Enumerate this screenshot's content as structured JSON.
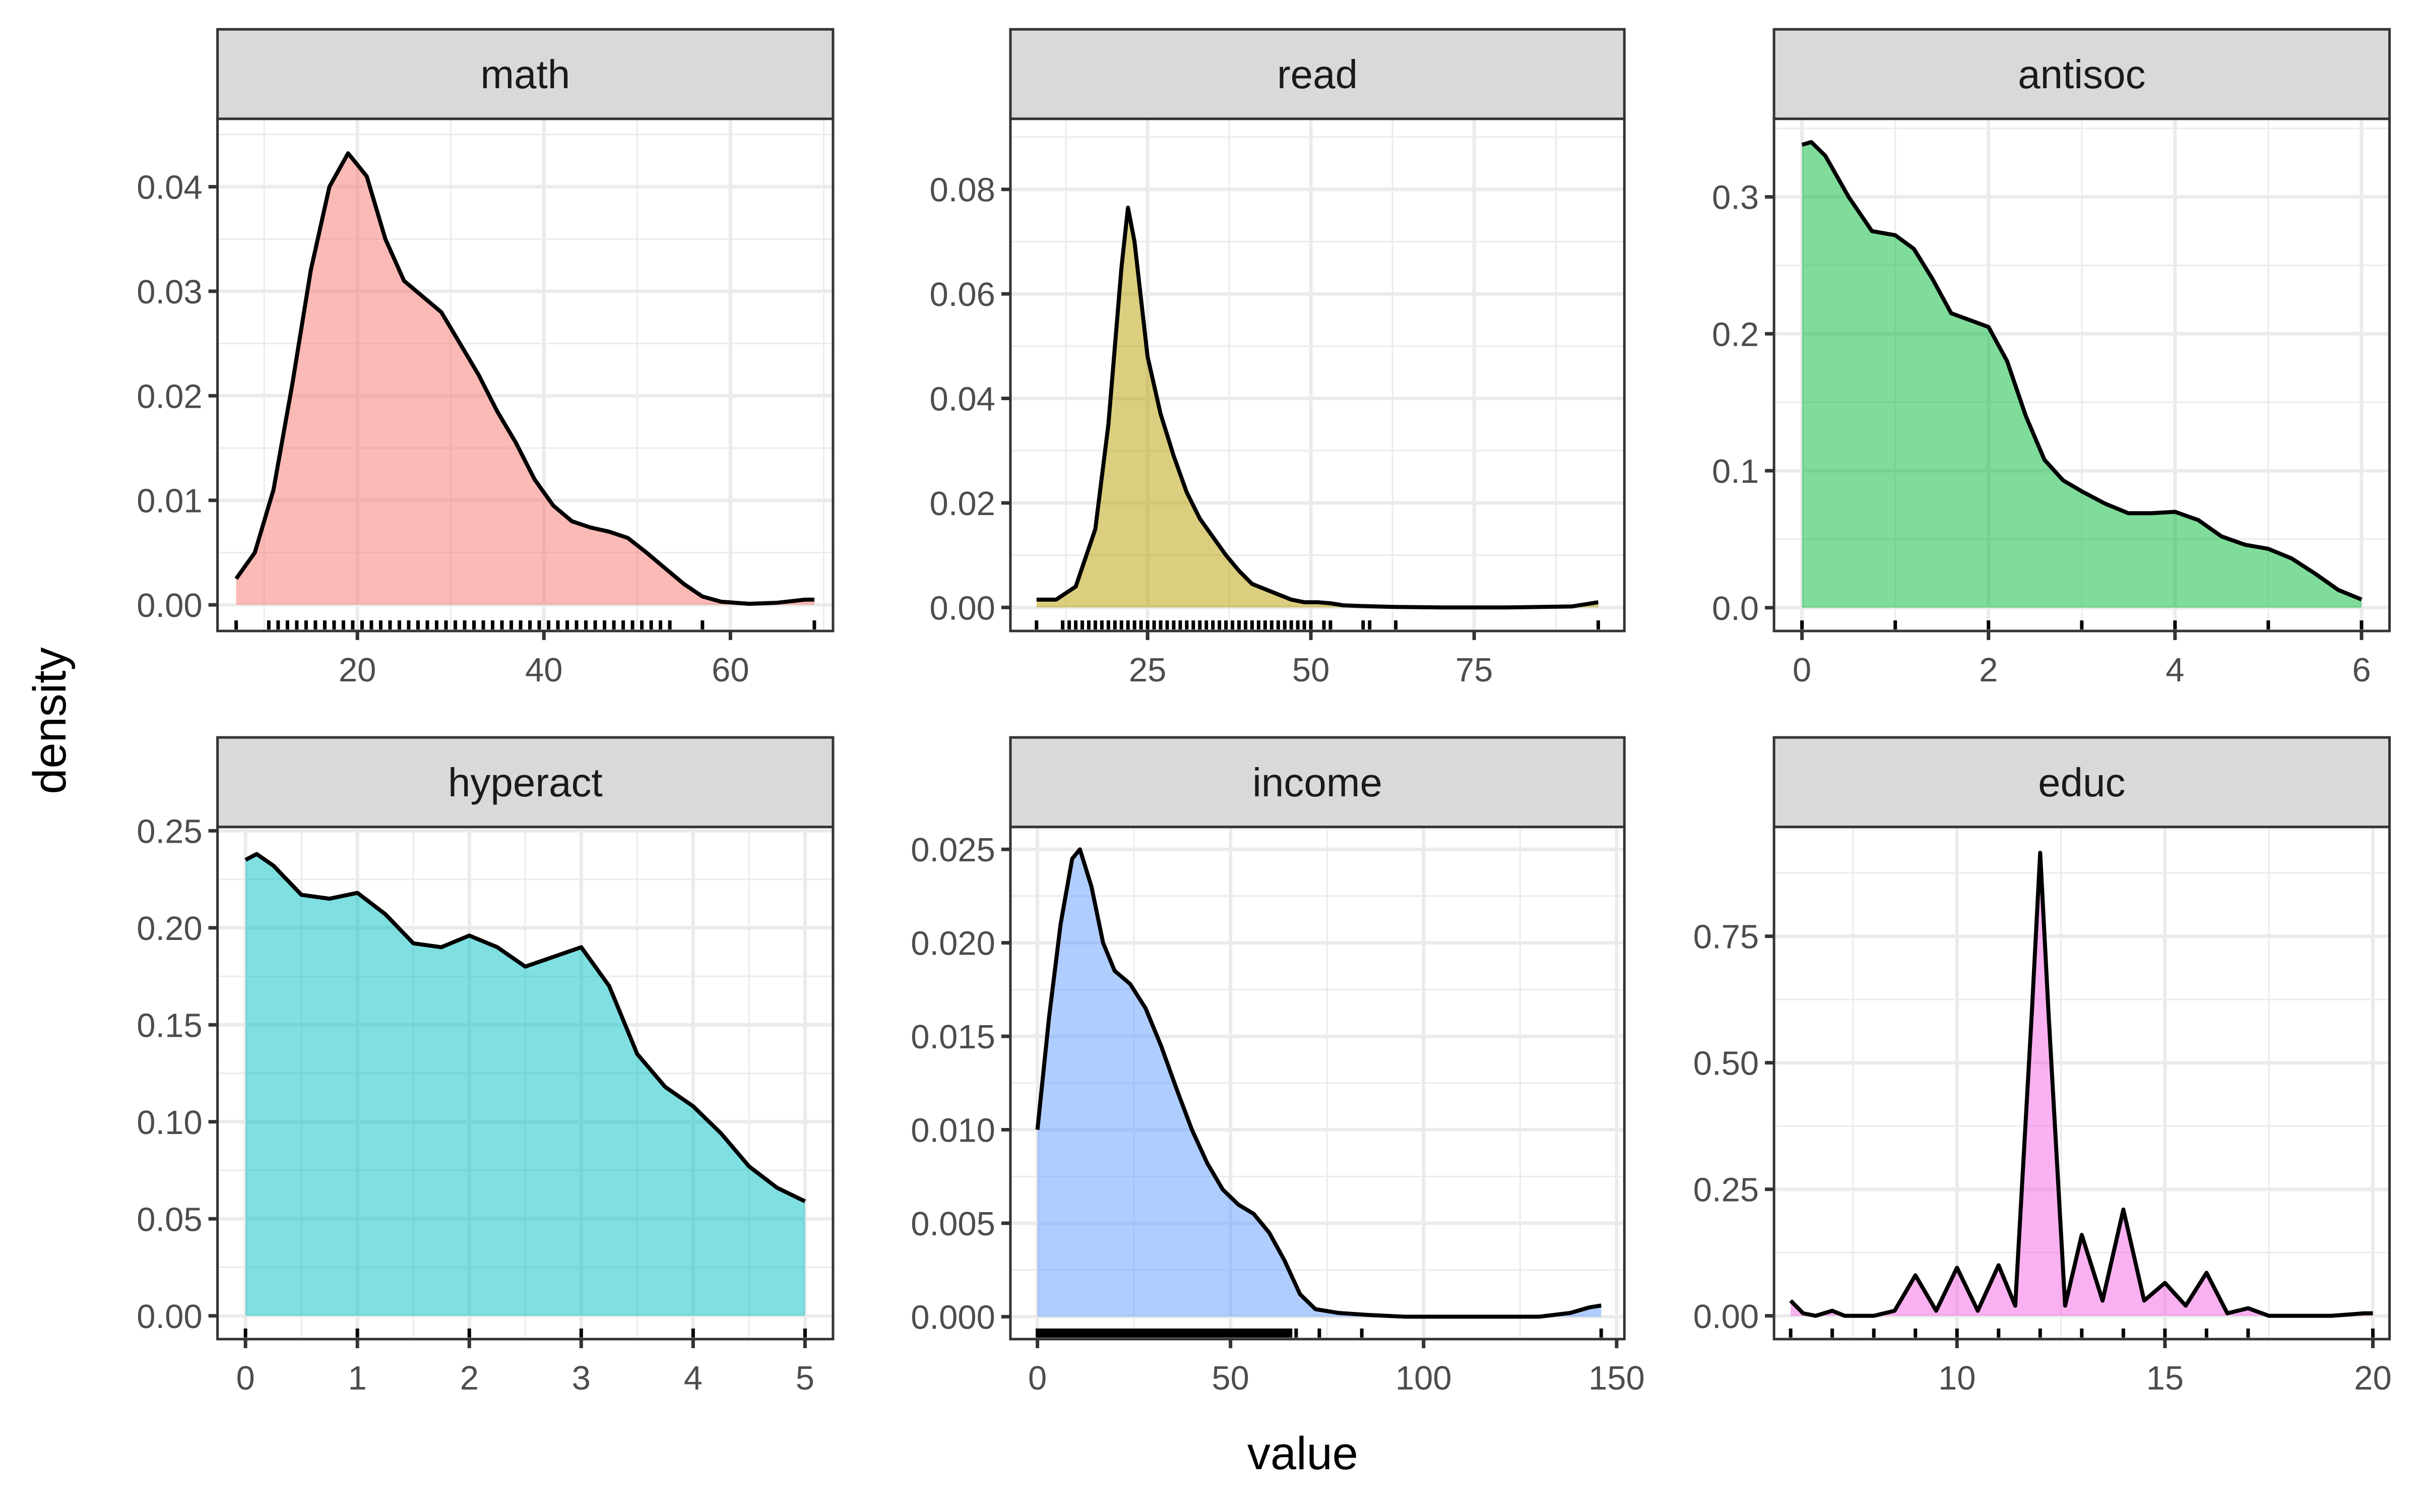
{
  "chart_data": {
    "type": "area",
    "xlabel": "value",
    "ylabel": "density",
    "grid": true,
    "layout": "facet_wrap 2 rows x 3 cols, free scales",
    "panels": [
      {
        "name": "math",
        "color": "#F8766D",
        "xlim": [
          5,
          71
        ],
        "ylim": [
          -0.0025,
          0.0465
        ],
        "xticks": [
          20,
          40,
          60
        ],
        "yticks": [
          0.0,
          0.01,
          0.02,
          0.03,
          0.04
        ],
        "ytick_labels": [
          "0.00",
          "0.01",
          "0.02",
          "0.03",
          "0.04"
        ],
        "xy": [
          [
            7,
            0.0025
          ],
          [
            9,
            0.005
          ],
          [
            11,
            0.011
          ],
          [
            13,
            0.021
          ],
          [
            15,
            0.032
          ],
          [
            17,
            0.04
          ],
          [
            19,
            0.0432
          ],
          [
            21,
            0.041
          ],
          [
            23,
            0.035
          ],
          [
            25,
            0.031
          ],
          [
            27,
            0.0295
          ],
          [
            29,
            0.028
          ],
          [
            31,
            0.025
          ],
          [
            33,
            0.022
          ],
          [
            35,
            0.0185
          ],
          [
            37,
            0.0155
          ],
          [
            39,
            0.012
          ],
          [
            41,
            0.0095
          ],
          [
            43,
            0.008
          ],
          [
            45,
            0.0074
          ],
          [
            47,
            0.007
          ],
          [
            49,
            0.0064
          ],
          [
            51,
            0.005
          ],
          [
            53,
            0.0035
          ],
          [
            55,
            0.002
          ],
          [
            57,
            0.0008
          ],
          [
            59,
            0.0003
          ],
          [
            62,
            0.0001
          ],
          [
            65,
            0.0002
          ],
          [
            68,
            0.0005
          ],
          [
            69,
            0.0005
          ]
        ],
        "rug": [
          7,
          10.5,
          11.5,
          12.5,
          13.5,
          14.5,
          15.5,
          16.5,
          17.5,
          18.5,
          19.5,
          20.5,
          21.5,
          22.5,
          23.5,
          24.5,
          25.5,
          26.5,
          27.5,
          28.5,
          29.5,
          30.5,
          31.5,
          32.5,
          33.5,
          34.5,
          35.5,
          36.5,
          37.5,
          38.5,
          39.5,
          40.5,
          41.5,
          42.5,
          43.5,
          44.5,
          45.5,
          46.5,
          47.5,
          48.5,
          49.5,
          50.5,
          51.5,
          52.5,
          53.5,
          57,
          69
        ]
      },
      {
        "name": "read",
        "color": "#B79F00",
        "xlim": [
          4,
          98
        ],
        "ylim": [
          -0.0045,
          0.0935
        ],
        "xticks": [
          25,
          50,
          75
        ],
        "yticks": [
          0.0,
          0.02,
          0.04,
          0.06,
          0.08
        ],
        "ytick_labels": [
          "0.00",
          "0.02",
          "0.04",
          "0.06",
          "0.08"
        ],
        "xy": [
          [
            8,
            0.0015
          ],
          [
            11,
            0.0015
          ],
          [
            14,
            0.004
          ],
          [
            17,
            0.015
          ],
          [
            19,
            0.035
          ],
          [
            21,
            0.065
          ],
          [
            22,
            0.0765
          ],
          [
            23,
            0.07
          ],
          [
            25,
            0.048
          ],
          [
            27,
            0.037
          ],
          [
            29,
            0.029
          ],
          [
            31,
            0.022
          ],
          [
            33,
            0.017
          ],
          [
            35,
            0.0135
          ],
          [
            37,
            0.01
          ],
          [
            39,
            0.007
          ],
          [
            41,
            0.0045
          ],
          [
            43,
            0.0035
          ],
          [
            45,
            0.0025
          ],
          [
            47,
            0.0015
          ],
          [
            49,
            0.001
          ],
          [
            51,
            0.001
          ],
          [
            53,
            0.0008
          ],
          [
            55,
            0.0004
          ],
          [
            57,
            0.0003
          ],
          [
            60,
            0.0002
          ],
          [
            63,
            0.0001
          ],
          [
            70,
            0.0
          ],
          [
            80,
            0.0
          ],
          [
            90,
            0.0002
          ],
          [
            94,
            0.001
          ]
        ],
        "rug": [
          8,
          12,
          13,
          14,
          15,
          16,
          17,
          18,
          19,
          20,
          21,
          22,
          23,
          24,
          25,
          26,
          27,
          28,
          29,
          30,
          31,
          32,
          33,
          34,
          35,
          36,
          37,
          38,
          39,
          40,
          41,
          42,
          43,
          44,
          45,
          46,
          47,
          48,
          49,
          50,
          52,
          53,
          58,
          59,
          63,
          94
        ]
      },
      {
        "name": "antisoc",
        "color": "#00BA38",
        "xlim": [
          -0.3,
          6.3
        ],
        "ylim": [
          -0.017,
          0.357
        ],
        "xticks": [
          0,
          2,
          4,
          6
        ],
        "yticks": [
          0.0,
          0.1,
          0.2,
          0.3
        ],
        "ytick_labels": [
          "0.0",
          "0.1",
          "0.2",
          "0.3"
        ],
        "xy": [
          [
            0,
            0.338
          ],
          [
            0.1,
            0.34
          ],
          [
            0.25,
            0.33
          ],
          [
            0.5,
            0.3
          ],
          [
            0.75,
            0.275
          ],
          [
            1.0,
            0.272
          ],
          [
            1.2,
            0.262
          ],
          [
            1.4,
            0.24
          ],
          [
            1.6,
            0.215
          ],
          [
            1.8,
            0.21
          ],
          [
            2.0,
            0.205
          ],
          [
            2.2,
            0.18
          ],
          [
            2.4,
            0.14
          ],
          [
            2.6,
            0.108
          ],
          [
            2.8,
            0.093
          ],
          [
            3.0,
            0.085
          ],
          [
            3.25,
            0.076
          ],
          [
            3.5,
            0.069
          ],
          [
            3.75,
            0.069
          ],
          [
            4.0,
            0.07
          ],
          [
            4.25,
            0.064
          ],
          [
            4.5,
            0.052
          ],
          [
            4.75,
            0.046
          ],
          [
            5.0,
            0.043
          ],
          [
            5.25,
            0.036
          ],
          [
            5.5,
            0.025
          ],
          [
            5.75,
            0.013
          ],
          [
            6.0,
            0.006
          ]
        ],
        "rug": [
          0,
          1,
          2,
          3,
          4,
          5,
          6
        ]
      },
      {
        "name": "hyperact",
        "color": "#00BFC4",
        "xlim": [
          -0.25,
          5.25
        ],
        "ylim": [
          -0.012,
          0.252
        ],
        "xticks": [
          0,
          1,
          2,
          3,
          4,
          5
        ],
        "yticks": [
          0.0,
          0.05,
          0.1,
          0.15,
          0.2,
          0.25
        ],
        "ytick_labels": [
          "0.00",
          "0.05",
          "0.10",
          "0.15",
          "0.20",
          "0.25"
        ],
        "xy": [
          [
            0,
            0.235
          ],
          [
            0.1,
            0.238
          ],
          [
            0.25,
            0.232
          ],
          [
            0.5,
            0.217
          ],
          [
            0.75,
            0.215
          ],
          [
            1.0,
            0.218
          ],
          [
            1.25,
            0.207
          ],
          [
            1.5,
            0.192
          ],
          [
            1.75,
            0.19
          ],
          [
            2.0,
            0.196
          ],
          [
            2.25,
            0.19
          ],
          [
            2.5,
            0.18
          ],
          [
            2.75,
            0.185
          ],
          [
            3.0,
            0.19
          ],
          [
            3.25,
            0.17
          ],
          [
            3.5,
            0.135
          ],
          [
            3.75,
            0.118
          ],
          [
            4.0,
            0.108
          ],
          [
            4.25,
            0.094
          ],
          [
            4.5,
            0.077
          ],
          [
            4.75,
            0.066
          ],
          [
            5.0,
            0.059
          ]
        ],
        "rug": [
          0,
          1,
          2,
          3,
          4,
          5
        ]
      },
      {
        "name": "income",
        "color": "#619CFF",
        "xlim": [
          -7,
          152
        ],
        "ylim": [
          -0.0012,
          0.0262
        ],
        "xticks": [
          0,
          50,
          100,
          150
        ],
        "yticks": [
          0.0,
          0.005,
          0.01,
          0.015,
          0.02,
          0.025
        ],
        "ytick_labels": [
          "0.000",
          "0.005",
          "0.010",
          "0.015",
          "0.020",
          "0.025"
        ],
        "xy": [
          [
            0,
            0.01
          ],
          [
            3,
            0.016
          ],
          [
            6,
            0.021
          ],
          [
            9,
            0.0245
          ],
          [
            11,
            0.025
          ],
          [
            14,
            0.023
          ],
          [
            17,
            0.02
          ],
          [
            20,
            0.0185
          ],
          [
            24,
            0.0178
          ],
          [
            28,
            0.0165
          ],
          [
            32,
            0.0145
          ],
          [
            36,
            0.0122
          ],
          [
            40,
            0.01
          ],
          [
            44,
            0.0082
          ],
          [
            48,
            0.0068
          ],
          [
            52,
            0.006
          ],
          [
            56,
            0.0055
          ],
          [
            60,
            0.0045
          ],
          [
            64,
            0.003
          ],
          [
            68,
            0.0012
          ],
          [
            72,
            0.0004
          ],
          [
            78,
            0.0002
          ],
          [
            85,
            0.0001
          ],
          [
            95,
            0.0
          ],
          [
            110,
            0.0
          ],
          [
            130,
            0.0
          ],
          [
            138,
            0.0002
          ],
          [
            143,
            0.0005
          ],
          [
            146,
            0.0006
          ]
        ],
        "rug": [
          0,
          67,
          73,
          84,
          146
        ],
        "rug_dense_range": [
          0,
          66
        ]
      },
      {
        "name": "educ",
        "color": "#F564E3",
        "xlim": [
          5.6,
          20.4
        ],
        "ylim": [
          -0.046,
          0.966
        ],
        "xticks": [
          10,
          15,
          20
        ],
        "yticks": [
          0.0,
          0.25,
          0.5,
          0.75
        ],
        "ytick_labels": [
          "0.00",
          "0.25",
          "0.50",
          "0.75"
        ],
        "xy": [
          [
            6,
            0.03
          ],
          [
            6.3,
            0.005
          ],
          [
            6.6,
            0.0
          ],
          [
            7,
            0.01
          ],
          [
            7.3,
            0.0
          ],
          [
            8,
            0.0
          ],
          [
            8.5,
            0.01
          ],
          [
            9,
            0.08
          ],
          [
            9.5,
            0.01
          ],
          [
            10,
            0.095
          ],
          [
            10.5,
            0.01
          ],
          [
            11,
            0.1
          ],
          [
            11.4,
            0.02
          ],
          [
            11.8,
            0.6
          ],
          [
            12,
            0.915
          ],
          [
            12.2,
            0.6
          ],
          [
            12.6,
            0.02
          ],
          [
            13,
            0.16
          ],
          [
            13.5,
            0.03
          ],
          [
            14,
            0.21
          ],
          [
            14.5,
            0.03
          ],
          [
            15,
            0.065
          ],
          [
            15.5,
            0.02
          ],
          [
            16,
            0.085
          ],
          [
            16.5,
            0.005
          ],
          [
            17,
            0.015
          ],
          [
            17.5,
            0.0
          ],
          [
            19,
            0.0
          ],
          [
            19.8,
            0.005
          ],
          [
            20,
            0.005
          ]
        ],
        "rug": [
          6,
          7,
          8,
          9,
          10,
          11,
          12,
          13,
          14,
          15,
          16,
          17,
          20
        ]
      }
    ]
  }
}
